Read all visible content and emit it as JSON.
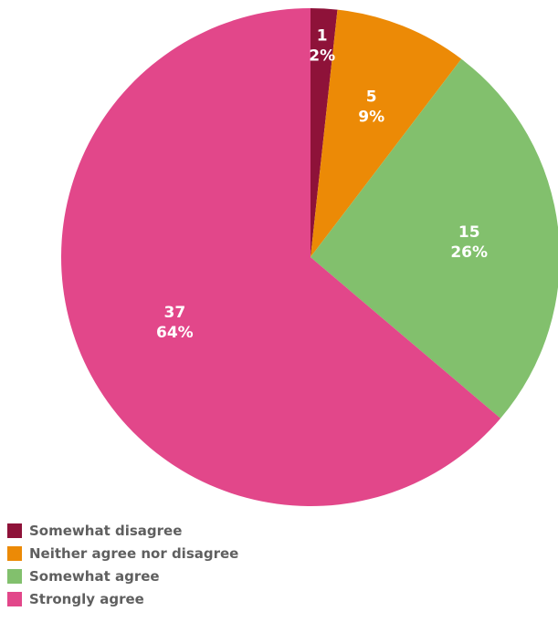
{
  "chart_data": {
    "type": "pie",
    "title": "",
    "categories": [
      "Somewhat disagree",
      "Neither agree nor disagree",
      "Somewhat agree",
      "Strongly agree"
    ],
    "values": [
      1,
      5,
      15,
      37
    ],
    "percent_labels": [
      "2%",
      "9%",
      "26%",
      "64%"
    ],
    "colors": [
      "#8e1239",
      "#ec8a06",
      "#82c06d",
      "#e2478a"
    ],
    "start_angle_deg": 0,
    "direction": "clockwise",
    "legend": {
      "position": "bottom-left",
      "entries": [
        "Somewhat disagree",
        "Neither agree nor disagree",
        "Somewhat agree",
        "Strongly agree"
      ]
    }
  }
}
